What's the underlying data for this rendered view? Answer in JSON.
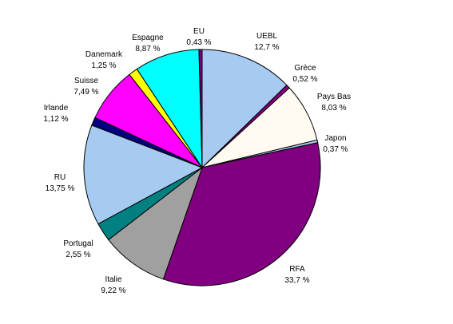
{
  "chart_data": {
    "type": "pie",
    "title": "",
    "categories": [
      "UEBL",
      "Grèce",
      "Pays Bas",
      "Japon",
      "RFA",
      "Italie",
      "Portugal",
      "RU",
      "Irlande",
      "Suisse",
      "Danemark",
      "Espagne",
      "EU"
    ],
    "values": [
      12.7,
      0.52,
      8.03,
      0.37,
      33.7,
      9.22,
      2.55,
      13.75,
      1.12,
      7.49,
      1.25,
      8.87,
      0.43
    ],
    "value_labels": [
      "12,7 %",
      "0,52 %",
      "8,03 %",
      "0,37 %",
      "33,7 %",
      "9,22 %",
      "2,55 %",
      "13,75 %",
      "1,12 %",
      "7,49 %",
      "1,25 %",
      "8,87 %",
      "0,43 %"
    ],
    "colors": [
      "#a6caf0",
      "#800080",
      "#fffbf0",
      "#a6caf0",
      "#800080",
      "#a0a0a0",
      "#008080",
      "#a6caf0",
      "#000080",
      "#ff00ff",
      "#ffff00",
      "#00ffff",
      "#800080"
    ],
    "legend": "none",
    "slice_border_color": "#000000"
  }
}
